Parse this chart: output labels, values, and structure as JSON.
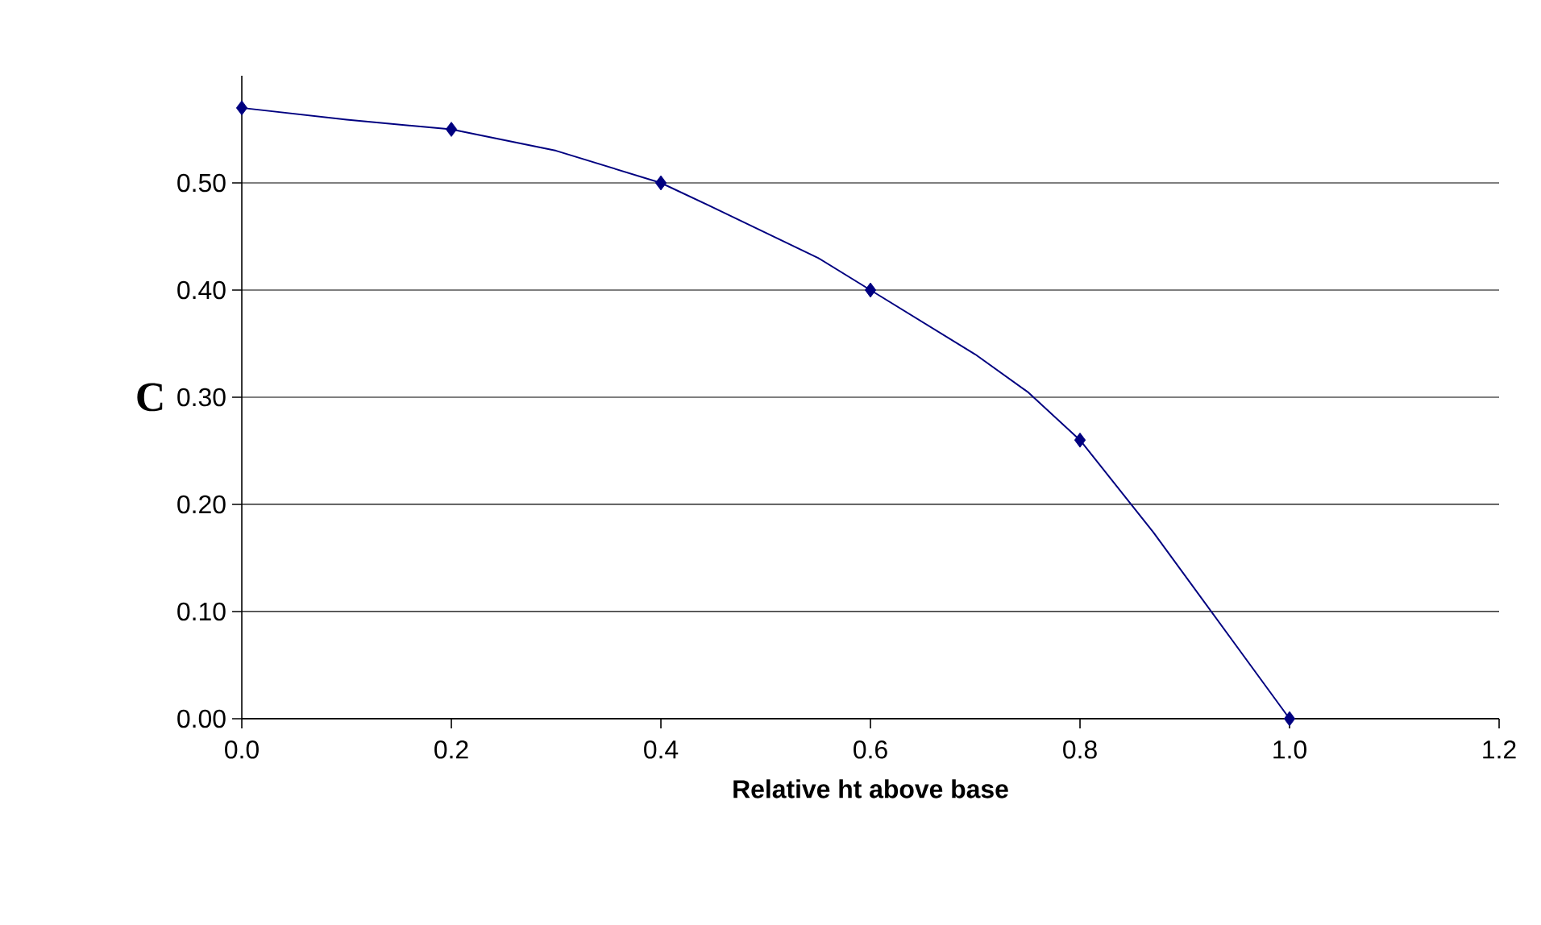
{
  "chart_data": {
    "type": "line",
    "xlabel": "Relative ht above base",
    "ylabel": "C",
    "series": [
      {
        "color": "#000080",
        "marker": "none",
        "line_style": "solid",
        "x": [
          0,
          0.1,
          0.2,
          0.3,
          0.4,
          0.45,
          0.55,
          0.6,
          0.7,
          0.75,
          0.8,
          0.87,
          1.0
        ],
        "values": [
          0.57,
          0.559,
          0.55,
          0.53,
          0.5,
          0.477,
          0.43,
          0.4,
          0.34,
          0.305,
          0.26,
          0.174,
          0.0
        ]
      },
      {
        "type": "scatter",
        "color": "#000080",
        "marker": "diamond",
        "x": [
          0,
          0.2,
          0.4,
          0.6,
          0.8,
          1.0
        ],
        "values": [
          0.57,
          0.55,
          0.5,
          0.4,
          0.26,
          0.0
        ]
      }
    ],
    "xlim": [
      0,
      1.2
    ],
    "xticks": [
      {
        "value": 0,
        "label": "0.0"
      },
      {
        "value": 0.2,
        "label": "0.2"
      },
      {
        "value": 0.4,
        "label": "0.4"
      },
      {
        "value": 0.6,
        "label": "0.6"
      },
      {
        "value": 0.8,
        "label": "0.8"
      },
      {
        "value": 1.0,
        "label": "1.0"
      },
      {
        "value": 1.2,
        "label": "1.2"
      }
    ],
    "ylim": [
      0,
      0.6
    ],
    "yticks": [
      {
        "value": 0,
        "label": "0.00"
      },
      {
        "value": 0.1,
        "label": "0.10"
      },
      {
        "value": 0.2,
        "label": "0.20"
      },
      {
        "value": 0.3,
        "label": "0.30"
      },
      {
        "value": 0.4,
        "label": "0.40"
      },
      {
        "value": 0.5,
        "label": "0.50"
      }
    ],
    "grid": "y"
  }
}
